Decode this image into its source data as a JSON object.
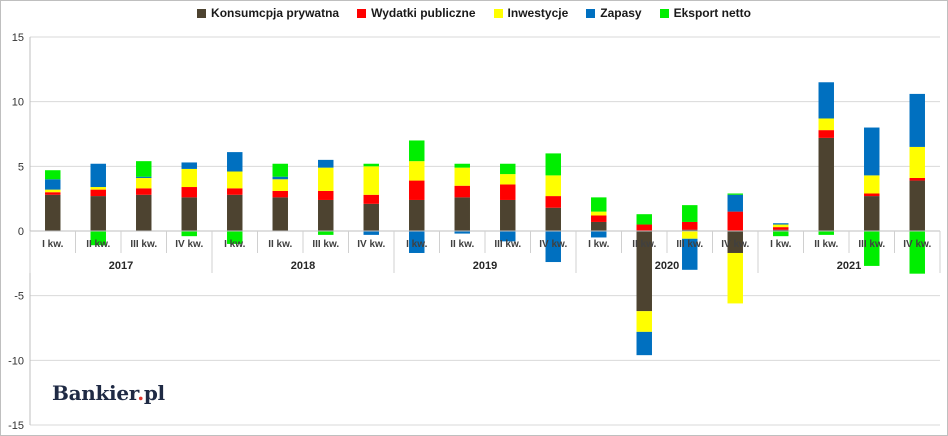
{
  "brand": {
    "name_part1": "Bankier",
    "dot": ".",
    "name_part2": "pl"
  },
  "chart_data": {
    "type": "bar",
    "stacked": true,
    "ylim": [
      -15,
      15
    ],
    "yticks": [
      -15,
      -10,
      -5,
      0,
      5,
      10,
      15
    ],
    "grid": true,
    "legend_position": "top",
    "categories": [
      "I kw.",
      "II kw.",
      "III kw.",
      "IV kw.",
      "I kw.",
      "II kw.",
      "III kw.",
      "IV kw.",
      "I kw.",
      "II kw.",
      "III kw.",
      "IV kw.",
      "I kw.",
      "II kw.",
      "III kw.",
      "IV kw.",
      "I kw.",
      "II kw.",
      "III kw.",
      "IV kw."
    ],
    "years": [
      {
        "label": "2017",
        "start": 0,
        "end": 3
      },
      {
        "label": "2018",
        "start": 4,
        "end": 7
      },
      {
        "label": "2019",
        "start": 8,
        "end": 11
      },
      {
        "label": "2020",
        "start": 12,
        "end": 15
      },
      {
        "label": "2021",
        "start": 16,
        "end": 19
      }
    ],
    "series": [
      {
        "name": "Konsumcpja prywatna",
        "color": "#4d4330",
        "values": [
          2.8,
          2.7,
          2.8,
          2.6,
          2.8,
          2.6,
          2.4,
          2.1,
          2.4,
          2.6,
          2.4,
          1.8,
          0.7,
          -6.2,
          0.1,
          -1.7,
          0.1,
          7.2,
          2.7,
          3.9
        ]
      },
      {
        "name": "Wydatki publiczne",
        "color": "#ff0000",
        "values": [
          0.2,
          0.5,
          0.5,
          0.8,
          0.5,
          0.5,
          0.7,
          0.7,
          1.5,
          0.9,
          1.2,
          0.9,
          0.5,
          0.5,
          0.6,
          1.5,
          0.2,
          0.6,
          0.2,
          0.2
        ]
      },
      {
        "name": "Inwestycje",
        "color": "#ffff00",
        "values": [
          0.2,
          0.2,
          0.8,
          1.4,
          1.3,
          0.9,
          1.8,
          2.2,
          1.5,
          1.4,
          0.8,
          1.6,
          0.3,
          -1.6,
          -0.6,
          -3.9,
          0.2,
          0.9,
          1.4,
          2.4
        ]
      },
      {
        "name": "Zapasy",
        "color": "#0070c0",
        "values": [
          0.8,
          1.8,
          0.1,
          0.5,
          1.5,
          0.2,
          0.6,
          -0.3,
          -1.7,
          -0.2,
          -0.8,
          -2.4,
          -0.5,
          -1.8,
          -2.4,
          1.3,
          0.1,
          2.8,
          3.7,
          4.1
        ]
      },
      {
        "name": "Eksport netto",
        "color": "#00ee00",
        "values": [
          0.7,
          -1.1,
          1.2,
          -0.4,
          -1.0,
          1.0,
          -0.3,
          0.2,
          1.6,
          0.3,
          0.8,
          1.7,
          1.1,
          0.8,
          1.3,
          0.1,
          -0.4,
          -0.3,
          -2.7,
          -3.3
        ]
      }
    ]
  }
}
